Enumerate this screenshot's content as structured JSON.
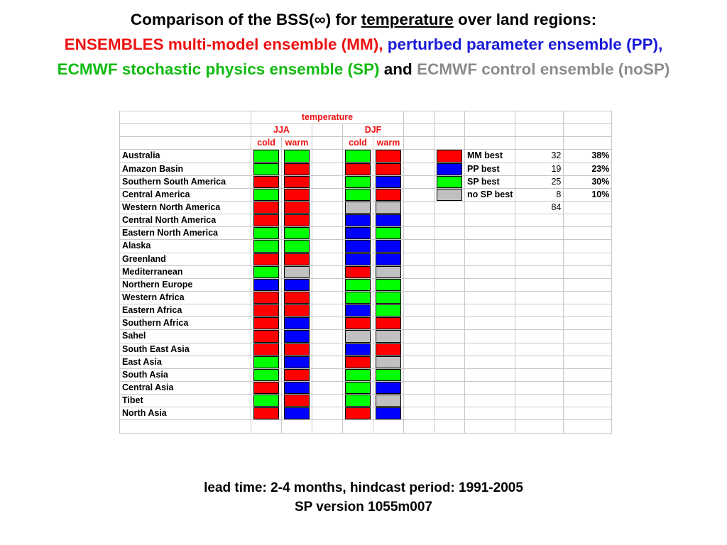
{
  "title": {
    "line1": {
      "prefix": "Comparison of the BSS(∞) for ",
      "underlined": "temperature",
      "suffix": " over land regions:"
    },
    "line2": {
      "mm": "ENSEMBLES multi-model ensemble (MM),",
      "pp": " perturbed parameter ensemble (PP),"
    },
    "line3": {
      "sp": "ECMWF stochastic physics ensemble (SP)",
      "and": " and ",
      "nosp": "ECMWF control ensemble (noSP)"
    }
  },
  "colors": {
    "MM": "#ff0000",
    "PP": "#0000ff",
    "SP": "#00ff00",
    "noSP": "#c0c0c0"
  },
  "table": {
    "header_variable": "temperature",
    "season_jja": "JJA",
    "season_djf": "DJF",
    "sub_cold": "cold",
    "sub_warm": "warm",
    "regions": [
      {
        "name": "Australia",
        "jja": [
          "SP",
          "SP"
        ],
        "djf": [
          "SP",
          "MM"
        ]
      },
      {
        "name": "Amazon Basin",
        "jja": [
          "SP",
          "MM"
        ],
        "djf": [
          "MM",
          "MM"
        ]
      },
      {
        "name": "Southern South America",
        "jja": [
          "MM",
          "MM"
        ],
        "djf": [
          "SP",
          "PP"
        ]
      },
      {
        "name": "Central America",
        "jja": [
          "SP",
          "MM"
        ],
        "djf": [
          "SP",
          "MM"
        ]
      },
      {
        "name": "Western North America",
        "jja": [
          "MM",
          "MM"
        ],
        "djf": [
          "noSP",
          "noSP"
        ]
      },
      {
        "name": "Central North America",
        "jja": [
          "MM",
          "MM"
        ],
        "djf": [
          "PP",
          "PP"
        ]
      },
      {
        "name": "Eastern North America",
        "jja": [
          "SP",
          "SP"
        ],
        "djf": [
          "PP",
          "SP"
        ]
      },
      {
        "name": "Alaska",
        "jja": [
          "SP",
          "SP"
        ],
        "djf": [
          "PP",
          "PP"
        ]
      },
      {
        "name": "Greenland",
        "jja": [
          "MM",
          "MM"
        ],
        "djf": [
          "PP",
          "PP"
        ]
      },
      {
        "name": "Mediterranean",
        "jja": [
          "SP",
          "noSP"
        ],
        "djf": [
          "MM",
          "noSP"
        ]
      },
      {
        "name": "Northern Europe",
        "jja": [
          "PP",
          "PP"
        ],
        "djf": [
          "SP",
          "SP"
        ]
      },
      {
        "name": "Western Africa",
        "jja": [
          "MM",
          "MM"
        ],
        "djf": [
          "SP",
          "SP"
        ]
      },
      {
        "name": "Eastern Africa",
        "jja": [
          "MM",
          "MM"
        ],
        "djf": [
          "PP",
          "SP"
        ]
      },
      {
        "name": "Southern Africa",
        "jja": [
          "MM",
          "PP"
        ],
        "djf": [
          "MM",
          "MM"
        ]
      },
      {
        "name": "Sahel",
        "jja": [
          "MM",
          "PP"
        ],
        "djf": [
          "noSP",
          "noSP"
        ]
      },
      {
        "name": "South East Asia",
        "jja": [
          "MM",
          "MM"
        ],
        "djf": [
          "PP",
          "MM"
        ]
      },
      {
        "name": "East Asia",
        "jja": [
          "SP",
          "PP"
        ],
        "djf": [
          "MM",
          "noSP"
        ]
      },
      {
        "name": "South Asia",
        "jja": [
          "SP",
          "MM"
        ],
        "djf": [
          "SP",
          "SP"
        ]
      },
      {
        "name": "Central Asia",
        "jja": [
          "MM",
          "PP"
        ],
        "djf": [
          "SP",
          "PP"
        ]
      },
      {
        "name": "Tibet",
        "jja": [
          "SP",
          "MM"
        ],
        "djf": [
          "SP",
          "noSP"
        ]
      },
      {
        "name": "North Asia",
        "jja": [
          "MM",
          "PP"
        ],
        "djf": [
          "MM",
          "PP"
        ]
      }
    ]
  },
  "legend": [
    {
      "key": "MM",
      "label": "MM best",
      "count": "32",
      "percent": "38%"
    },
    {
      "key": "PP",
      "label": "PP best",
      "count": "19",
      "percent": "23%"
    },
    {
      "key": "SP",
      "label": "SP best",
      "count": "25",
      "percent": "30%"
    },
    {
      "key": "noSP",
      "label": "no SP best",
      "count": "8",
      "percent": "10%"
    }
  ],
  "total_count": "84",
  "footer": {
    "line1": "lead time: 2-4 months, hindcast period: 1991-2005",
    "line2": "SP version 1055m007"
  }
}
